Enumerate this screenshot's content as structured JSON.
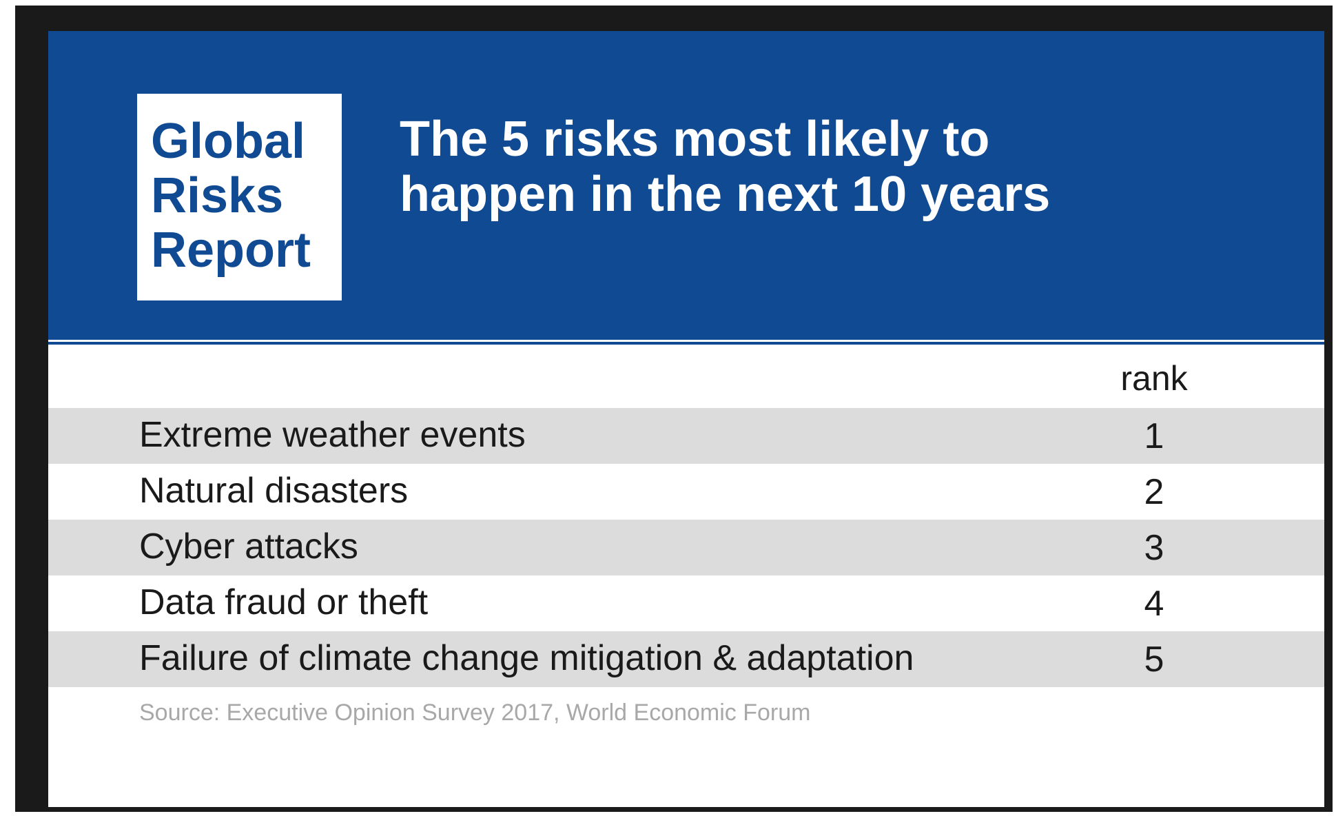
{
  "logo": {
    "lines": [
      "Global",
      "Risks",
      "Report"
    ]
  },
  "title": "The 5 risks most likely to happen in the next 10 years",
  "table": {
    "rank_header": "rank",
    "rows": [
      {
        "label": "Extreme weather events",
        "rank": "1"
      },
      {
        "label": "Natural disasters",
        "rank": "2"
      },
      {
        "label": "Cyber attacks",
        "rank": "3"
      },
      {
        "label": "Data fraud or theft",
        "rank": "4"
      },
      {
        "label": "Failure of climate change mitigation & adaptation",
        "rank": "5"
      }
    ]
  },
  "source": "Source: Executive Opinion Survey 2017, World Economic Forum",
  "colors": {
    "header_blue": "#0f4a92",
    "row_stripe": "#dcdcdc",
    "source_gray": "#a8a8a8"
  }
}
